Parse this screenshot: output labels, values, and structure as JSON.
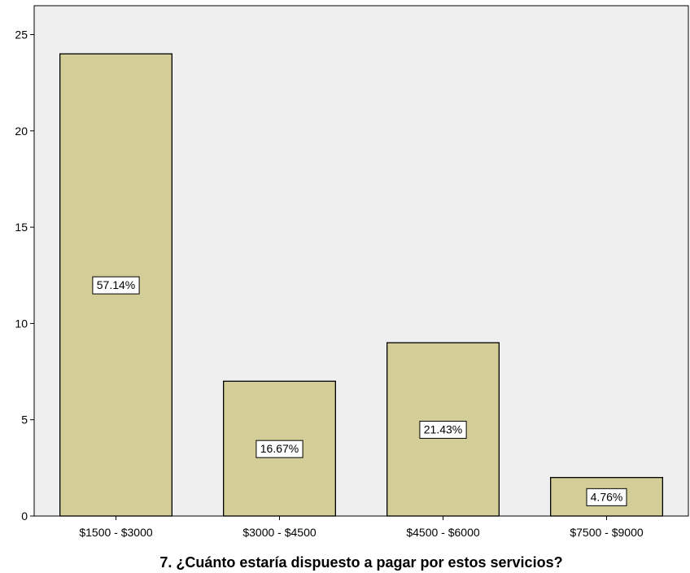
{
  "chart_data": {
    "type": "bar",
    "categories": [
      "$1500 - $3000",
      "$3000 - $4500",
      "$4500 - $6000",
      "$7500 - $9000"
    ],
    "values": [
      24,
      7,
      9,
      2
    ],
    "data_labels": [
      "57.14%",
      "16.67%",
      "21.43%",
      "4.76%"
    ],
    "title": "",
    "xlabel": "7. ¿Cuánto estaría dispuesto a pagar por estos servicios?",
    "ylabel": "",
    "ylim": [
      0,
      26.5
    ],
    "yticks": [
      0,
      5,
      10,
      15,
      20,
      25
    ],
    "grid": false,
    "colors": {
      "bar_fill": "#d3ce97",
      "bar_stroke": "#000000",
      "plot_background": "#efefef",
      "label_box": "#ffffff"
    }
  }
}
